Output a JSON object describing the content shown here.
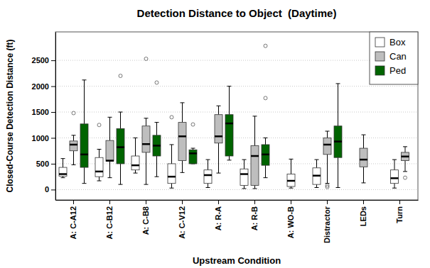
{
  "chart_data": {
    "type": "box",
    "title": "Detection Distance to Object  (Daytime)",
    "x_label": "Upstream Condition",
    "y_label": "Closed-Course Detection Distance (ft)",
    "categories": [
      "A: C-A12",
      "A: C-B12",
      "A: C-B8",
      "A: C-V12",
      "A: R-A",
      "A: R-B",
      "A: WO-B",
      "Distractor",
      "LEDs",
      "Turn"
    ],
    "series": [
      {
        "name": "Box",
        "color": "#ffffff",
        "min": [
          230,
          170,
          320,
          30,
          40,
          20,
          30,
          40,
          null,
          30
        ],
        "q1": [
          260,
          250,
          380,
          120,
          120,
          80,
          60,
          100,
          null,
          120
        ],
        "median": [
          300,
          350,
          470,
          250,
          280,
          300,
          170,
          270,
          null,
          220
        ],
        "q3": [
          430,
          620,
          650,
          500,
          380,
          400,
          300,
          420,
          null,
          380
        ],
        "max": [
          600,
          780,
          1000,
          870,
          580,
          580,
          590,
          580,
          null,
          580
        ],
        "outliers": [
          [],
          [
            1250
          ],
          [],
          [
            1400
          ],
          [],
          [],
          [],
          [],
          null,
          []
        ]
      },
      {
        "name": "Can",
        "color": "#bebebe",
        "min": [
          480,
          230,
          100,
          330,
          320,
          20,
          null,
          120,
          130,
          350
        ],
        "q1": [
          750,
          550,
          720,
          560,
          900,
          80,
          null,
          680,
          440,
          560
        ],
        "median": [
          870,
          560,
          880,
          1030,
          1030,
          650,
          null,
          870,
          580,
          640
        ],
        "q3": [
          940,
          950,
          1230,
          1300,
          1450,
          850,
          null,
          1000,
          800,
          720
        ],
        "max": [
          1050,
          1400,
          1380,
          1680,
          1620,
          1420,
          null,
          1130,
          1060,
          830
        ],
        "outliers": [
          [
            1480
          ],
          [],
          [
            2530
          ],
          [],
          [],
          [],
          null,
          [
            50,
            80
          ],
          [],
          [
            230
          ]
        ]
      },
      {
        "name": "Ped",
        "color": "#006400",
        "min": [
          120,
          100,
          250,
          500,
          570,
          230,
          null,
          40,
          null,
          null
        ],
        "q1": [
          430,
          500,
          650,
          500,
          650,
          470,
          null,
          620,
          null,
          null
        ],
        "median": [
          680,
          820,
          850,
          700,
          1280,
          680,
          null,
          930,
          null,
          null
        ],
        "q3": [
          1270,
          1180,
          1050,
          770,
          1450,
          870,
          null,
          1230,
          null,
          null
        ],
        "max": [
          2120,
          1500,
          1300,
          800,
          2000,
          1000,
          null,
          2050,
          null,
          null
        ],
        "outliers": [
          [],
          [
            2200
          ],
          [
            2070
          ],
          [
            1260
          ],
          [],
          [
            1770,
            2780
          ],
          null,
          [],
          null,
          null
        ]
      }
    ],
    "ylim": [
      -200,
      3050
    ],
    "yticks": [
      0,
      500,
      1000,
      1500,
      2000,
      2500
    ],
    "grid": true,
    "legend": "top-right"
  }
}
